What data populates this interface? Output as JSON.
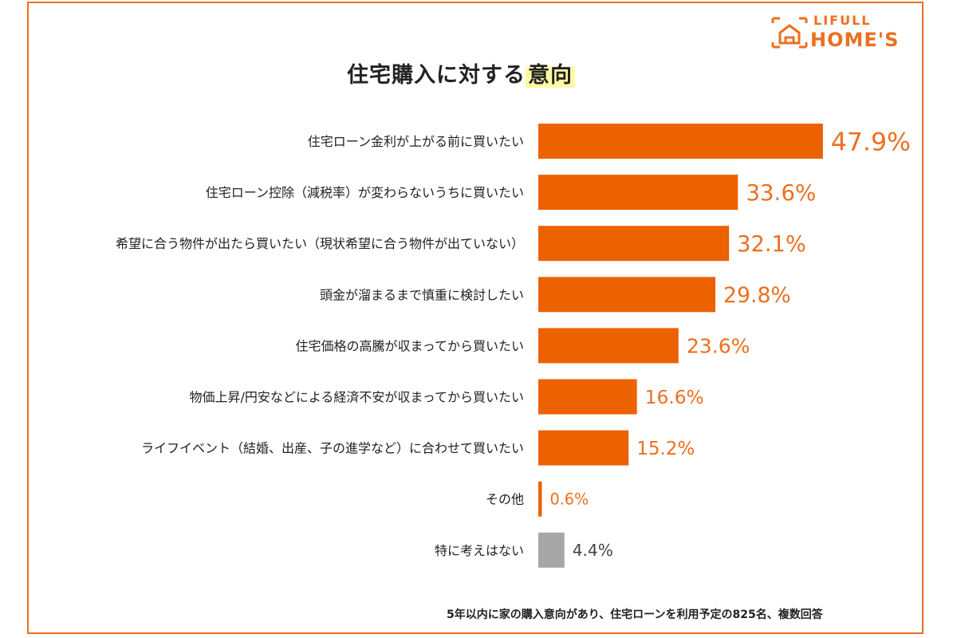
{
  "title": {
    "main": "住宅購入に対する",
    "highlight": "意向"
  },
  "logo": {
    "line1": "LIFULL",
    "line2": "HOME'S"
  },
  "footnote": "5年以内に家の購入意向があり、住宅ローンを利用予定の825名、複数回答",
  "colors": {
    "accent": "#ec6f1f",
    "bar": "#ec6100",
    "neutral": "#a6a6a6",
    "highlight": "#fff9a6"
  },
  "chart_data": {
    "type": "bar",
    "orientation": "horizontal",
    "title": "住宅購入に対する意向",
    "categories": [
      "住宅ローン金利が上がる前に買いたい",
      "住宅ローン控除（減税率）が変わらないうちに買いたい",
      "希望に合う物件が出たら買いたい（現状希望に合う物件が出ていない）",
      "頭金が溜まるまで慎重に検討したい",
      "住宅価格の高騰が収まってから買いたい",
      "物価上昇/円安などによる経済不安が収まってから買いたい",
      "ライフイベント（結婚、出産、子の進学など）に合わせて買いたい",
      "その他",
      "特に考えはない"
    ],
    "values": [
      47.9,
      33.6,
      32.1,
      29.8,
      23.6,
      16.6,
      15.2,
      0.6,
      4.4
    ],
    "value_labels": [
      "47.9%",
      "33.6%",
      "32.1%",
      "29.8%",
      "23.6%",
      "16.6%",
      "15.2%",
      "0.6%",
      "4.4%"
    ],
    "bar_colors": [
      "#ec6100",
      "#ec6100",
      "#ec6100",
      "#ec6100",
      "#ec6100",
      "#ec6100",
      "#ec6100",
      "#ec6100",
      "#a6a6a6"
    ],
    "xlim": [
      0,
      50
    ],
    "grid": false,
    "legend": "none"
  }
}
